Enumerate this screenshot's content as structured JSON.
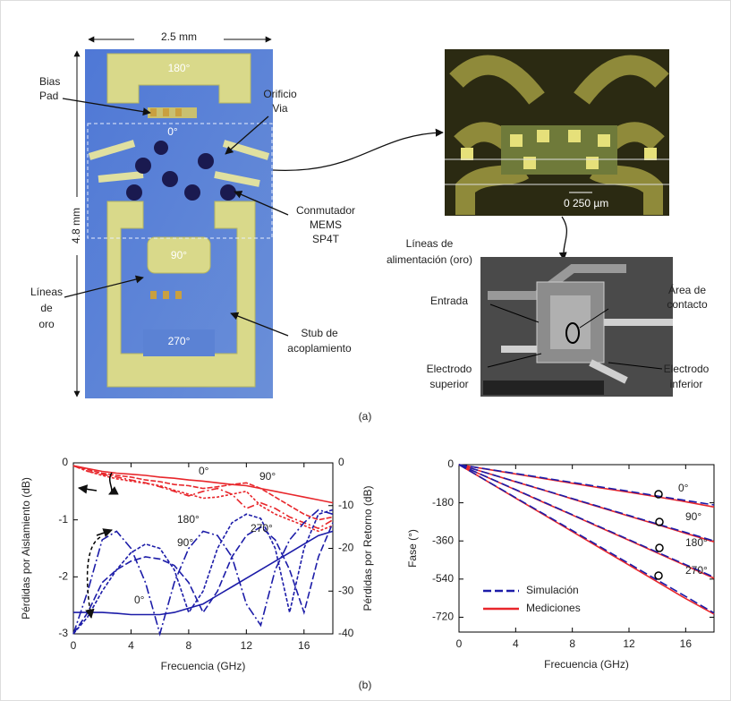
{
  "figure_a": {
    "dimension_width": "2.5 mm",
    "dimension_height": "4.8 mm",
    "chip_labels": [
      "180°",
      "0°",
      "90°",
      "270°"
    ],
    "callouts": {
      "bias_pad": [
        "Bias",
        "Pad"
      ],
      "via": [
        "Orificio",
        "Via"
      ],
      "switch": [
        "Conmutador",
        "MEMS",
        "SP4T"
      ],
      "lines": [
        "Líneas",
        "de",
        "oro"
      ],
      "stub": [
        "Stub de",
        "acoplamiento"
      ]
    },
    "scale_bar": "0 250 µm",
    "sem_callouts": {
      "feed": [
        "Líneas de",
        "alimentación (oro)"
      ],
      "input": [
        "Entrada"
      ],
      "contact": [
        "Área de",
        "contacto"
      ],
      "top_electrode": [
        "Electrodo",
        "superior"
      ],
      "bottom_electrode": [
        "Electrodo",
        "inferior"
      ]
    },
    "caption": "(a)"
  },
  "caption_b": "(b)",
  "chart_data": [
    {
      "type": "line",
      "xlabel": "Frecuencia (GHz)",
      "ylabel": "Pérdidas por Aislamiento (dB)",
      "y2label": "Pérdidas por Retorno (dB)",
      "x": [
        0,
        1,
        2,
        3,
        4,
        5,
        6,
        7,
        8,
        9,
        10,
        11,
        12,
        13,
        14,
        15,
        16,
        17,
        18
      ],
      "xlim": [
        0,
        18
      ],
      "xticks": [
        0,
        4,
        8,
        12,
        16
      ],
      "ylim": [
        -3,
        0
      ],
      "yticks": [
        0,
        -1,
        -2,
        -3
      ],
      "y2lim": [
        -40,
        0
      ],
      "y2ticks": [
        0,
        -10,
        -20,
        -30,
        -40
      ],
      "series": [
        {
          "color": "#e8262b",
          "dash": "none",
          "values": [
            -0.05,
            -0.1,
            -0.15,
            -0.18,
            -0.2,
            -0.22,
            -0.25,
            -0.27,
            -0.3,
            -0.32,
            -0.35,
            -0.38,
            -0.4,
            -0.45,
            -0.5,
            -0.55,
            -0.6,
            -0.65,
            -0.7
          ]
        },
        {
          "color": "#e8262b",
          "dash": "6 2",
          "values": [
            -0.05,
            -0.12,
            -0.18,
            -0.22,
            -0.25,
            -0.3,
            -0.33,
            -0.38,
            -0.4,
            -0.45,
            -0.42,
            -0.38,
            -0.35,
            -0.45,
            -0.6,
            -0.75,
            -0.9,
            -1.0,
            -0.95
          ]
        },
        {
          "color": "#e8262b",
          "dash": "3 2",
          "values": [
            -0.05,
            -0.15,
            -0.22,
            -0.28,
            -0.32,
            -0.36,
            -0.4,
            -0.48,
            -0.55,
            -0.62,
            -0.6,
            -0.55,
            -0.5,
            -0.75,
            -0.9,
            -1.0,
            -1.1,
            -1.2,
            -1.1
          ]
        },
        {
          "color": "#e8262b",
          "dash": "8 3 2 3",
          "values": [
            -0.05,
            -0.15,
            -0.2,
            -0.25,
            -0.3,
            -0.35,
            -0.42,
            -0.5,
            -0.58,
            -0.5,
            -0.45,
            -0.55,
            -0.8,
            -0.7,
            -0.8,
            -0.95,
            -1.05,
            -1.15,
            -1.0
          ]
        },
        {
          "color": "#1c1ca8",
          "dash": "none",
          "axis": "y2",
          "values": [
            -35,
            -35,
            -35,
            -35.2,
            -35.5,
            -35.5,
            -35.5,
            -35,
            -34,
            -33,
            -31,
            -29,
            -27,
            -25,
            -23,
            -21,
            -19,
            -17,
            -16
          ]
        },
        {
          "color": "#1c1ca8",
          "dash": "8 3",
          "axis": "y2",
          "values": [
            -40,
            -35,
            -28,
            -25,
            -23,
            -22,
            -22.5,
            -24,
            -28,
            -35,
            -30,
            -22,
            -17,
            -15,
            -18,
            -25,
            -35,
            -22,
            -14
          ]
        },
        {
          "color": "#1c1ca8",
          "dash": "10 3 2 3",
          "axis": "y2",
          "values": [
            -40,
            -30,
            -18,
            -16,
            -20,
            -28,
            -40,
            -28,
            -20,
            -16,
            -17,
            -22,
            -33,
            -38,
            -25,
            -18,
            -14,
            -11,
            -12
          ]
        },
        {
          "color": "#1c1ca8",
          "dash": "4 2",
          "axis": "y2",
          "values": [
            -40,
            -36,
            -30,
            -25,
            -21,
            -19,
            -20,
            -25,
            -35,
            -30,
            -20,
            -14,
            -12,
            -13,
            -20,
            -35,
            -20,
            -12,
            -11
          ]
        }
      ],
      "annotations": [
        "0°",
        "90°",
        "180°",
        "270°",
        "90°",
        "0°"
      ]
    },
    {
      "type": "line",
      "xlabel": "Frecuencia (GHz)",
      "ylabel": "Fase (°)",
      "x": [
        0,
        2,
        4,
        6,
        8,
        10,
        12,
        14,
        16,
        18
      ],
      "xlim": [
        0,
        18
      ],
      "xticks": [
        0,
        4,
        8,
        12,
        16
      ],
      "ylim": [
        -790,
        0
      ],
      "yticks": [
        0,
        -180,
        -360,
        -540,
        -720
      ],
      "series": [
        {
          "color": "#e8262b",
          "dash": "none",
          "values": [
            0,
            -22,
            -44,
            -66,
            -88,
            -110,
            -130,
            -152,
            -175,
            -200
          ]
        },
        {
          "color": "#e8262b",
          "dash": "none",
          "values": [
            0,
            -40,
            -81,
            -121,
            -162,
            -202,
            -243,
            -283,
            -324,
            -364
          ]
        },
        {
          "color": "#e8262b",
          "dash": "none",
          "values": [
            0,
            -60,
            -119,
            -179,
            -238,
            -298,
            -357,
            -417,
            -476,
            -536
          ]
        },
        {
          "color": "#e8262b",
          "dash": "none",
          "values": [
            0,
            -79,
            -158,
            -237,
            -316,
            -395,
            -474,
            -553,
            -632,
            -705
          ]
        },
        {
          "color": "#1c1ca8",
          "dash": "9 4",
          "values": [
            0,
            -21,
            -42,
            -63,
            -84,
            -105,
            -126,
            -148,
            -169,
            -190
          ]
        },
        {
          "color": "#1c1ca8",
          "dash": "9 4",
          "values": [
            0,
            -40,
            -80,
            -120,
            -160,
            -200,
            -240,
            -280,
            -320,
            -360
          ]
        },
        {
          "color": "#1c1ca8",
          "dash": "9 4",
          "values": [
            0,
            -59,
            -118,
            -177,
            -236,
            -295,
            -354,
            -413,
            -472,
            -531
          ]
        },
        {
          "color": "#1c1ca8",
          "dash": "9 4",
          "values": [
            0,
            -78,
            -156,
            -233,
            -311,
            -389,
            -467,
            -545,
            -622,
            -700
          ]
        }
      ],
      "legend": [
        {
          "name": "Simulación",
          "color": "#1c1ca8",
          "dash": "9 4"
        },
        {
          "name": "Mediciones",
          "color": "#e8262b",
          "dash": "none"
        }
      ],
      "annotations": [
        "0°",
        "90°",
        "180°",
        "270°"
      ]
    }
  ]
}
